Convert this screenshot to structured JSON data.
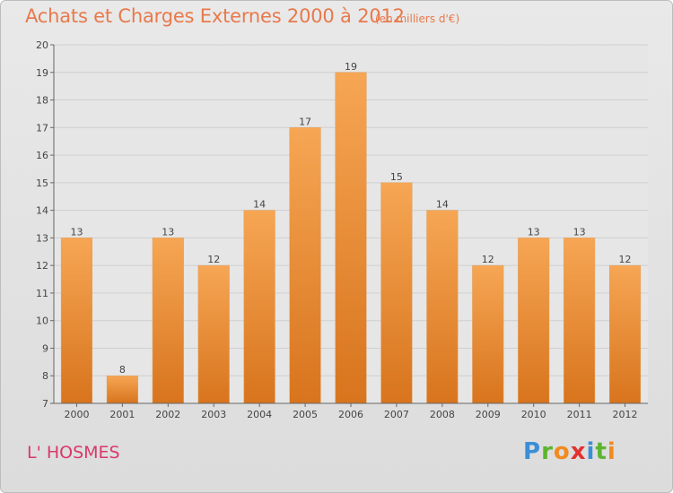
{
  "header": {
    "title": "Achats et Charges Externes 2000 à 2012",
    "unit": "(en milliers d'€)"
  },
  "footer": {
    "commune": "L' HOSMES",
    "logo": "Proxiti"
  },
  "colors": {
    "title": "#e8794b",
    "commune": "#d9396a",
    "bar_top": "#f6a654",
    "bar_bottom": "#d8741d"
  },
  "chart_data": {
    "type": "bar",
    "categories": [
      "2000",
      "2001",
      "2002",
      "2003",
      "2004",
      "2005",
      "2006",
      "2007",
      "2008",
      "2009",
      "2010",
      "2011",
      "2012"
    ],
    "values": [
      13,
      8,
      13,
      12,
      14,
      17,
      19,
      15,
      14,
      12,
      13,
      13,
      12
    ],
    "title": "Achats et Charges Externes 2000 à 2012",
    "subtitle": "(en milliers d'€)",
    "ylim": [
      7,
      20
    ],
    "yticks": [
      7,
      8,
      9,
      10,
      11,
      12,
      13,
      14,
      15,
      16,
      17,
      18,
      19,
      20
    ],
    "grid": true,
    "data_labels": true
  }
}
